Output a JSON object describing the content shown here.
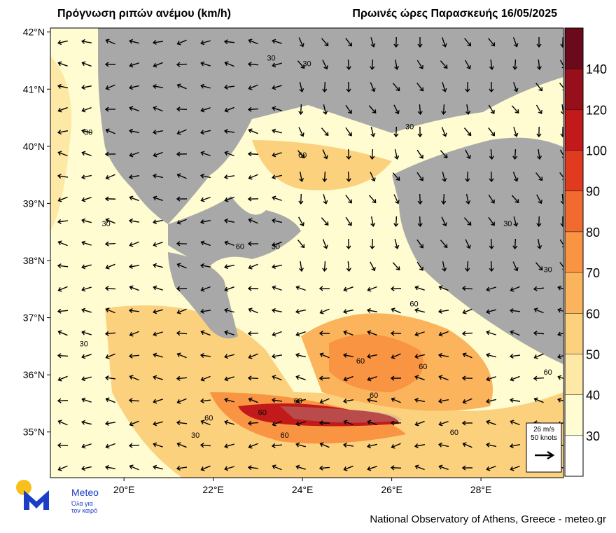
{
  "header": {
    "title": "Πρόγνωση ριπών ανέμου (km/h)",
    "subtitle": "Πρωινές ώρες Παρασκευής 16/05/2025"
  },
  "map": {
    "xlim": [
      18.35,
      29.85
    ],
    "ylim": [
      34.2,
      42.07
    ],
    "yticks": [
      {
        "value": 42,
        "label": "42°N"
      },
      {
        "value": 41,
        "label": "41°N"
      },
      {
        "value": 40,
        "label": "40°N"
      },
      {
        "value": 39,
        "label": "39°N"
      },
      {
        "value": 38,
        "label": "38°N"
      },
      {
        "value": 37,
        "label": "37°N"
      },
      {
        "value": 36,
        "label": "36°N"
      },
      {
        "value": 35,
        "label": "35°N"
      }
    ],
    "xticks": [
      {
        "value": 20,
        "label": "20°E"
      },
      {
        "value": 22,
        "label": "22°E"
      },
      {
        "value": 24,
        "label": "24°E"
      },
      {
        "value": 26,
        "label": "26°E"
      },
      {
        "value": 28,
        "label": "28°E"
      }
    ],
    "contour_labels": [
      {
        "value": 30,
        "lon": 19.2,
        "lat": 40.2
      },
      {
        "value": 30,
        "lon": 19.6,
        "lat": 38.6
      },
      {
        "value": 30,
        "lon": 19.1,
        "lat": 36.5
      },
      {
        "value": 30,
        "lon": 21.6,
        "lat": 34.9
      },
      {
        "value": 60,
        "lon": 21.9,
        "lat": 35.2
      },
      {
        "value": 60,
        "lon": 23.1,
        "lat": 35.3
      },
      {
        "value": 60,
        "lon": 23.9,
        "lat": 35.5
      },
      {
        "value": 60,
        "lon": 23.6,
        "lat": 34.9
      },
      {
        "value": 60,
        "lon": 25.6,
        "lat": 35.6
      },
      {
        "value": 60,
        "lon": 25.3,
        "lat": 36.2
      },
      {
        "value": 60,
        "lon": 26.7,
        "lat": 36.1
      },
      {
        "value": 60,
        "lon": 27.4,
        "lat": 34.95
      },
      {
        "value": 60,
        "lon": 29.5,
        "lat": 36.0
      },
      {
        "value": 30,
        "lon": 23.3,
        "lat": 41.5
      },
      {
        "value": 30,
        "lon": 24.1,
        "lat": 41.4
      },
      {
        "value": 30,
        "lon": 26.4,
        "lat": 40.3
      },
      {
        "value": 60,
        "lon": 24.0,
        "lat": 39.8
      },
      {
        "value": 60,
        "lon": 22.6,
        "lat": 38.2
      },
      {
        "value": 30,
        "lon": 23.4,
        "lat": 38.2
      },
      {
        "value": 60,
        "lon": 26.5,
        "lat": 37.2
      },
      {
        "value": 30,
        "lon": 28.6,
        "lat": 38.6
      },
      {
        "value": 30,
        "lon": 29.5,
        "lat": 37.8
      }
    ]
  },
  "colorbar": {
    "levels": [
      30,
      40,
      50,
      60,
      70,
      80,
      90,
      100,
      120,
      140
    ],
    "colors": [
      "#ffffff",
      "#fefcd0",
      "#fde8a6",
      "#fcd17e",
      "#fbb35c",
      "#f99442",
      "#f16a2f",
      "#e03b1f",
      "#c21a1a",
      "#970f1b",
      "#6b0a1b"
    ]
  },
  "vector_legend": {
    "speed": "26 m/s",
    "knots": "50 knots"
  },
  "logo": {
    "name": "Meteo",
    "tagline_1": "Όλα για",
    "tagline_2": "τον καιρό"
  },
  "footer": "National Observatory of Athens, Greece - meteo.gr"
}
